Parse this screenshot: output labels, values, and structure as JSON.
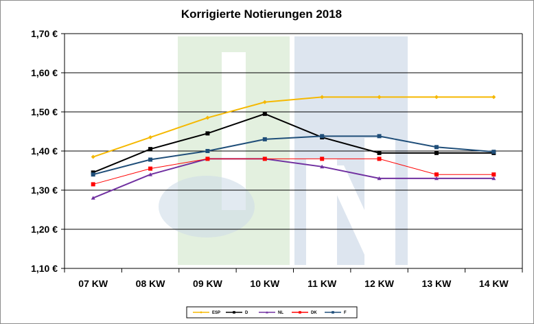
{
  "chart_data": {
    "type": "line",
    "title": "Korrigierte Notierungen 2018",
    "xlabel": "",
    "ylabel": "",
    "categories": [
      "07 KW",
      "08 KW",
      "09 KW",
      "10 KW",
      "11 KW",
      "12 KW",
      "13 KW",
      "14 KW"
    ],
    "ylim": [
      1.1,
      1.7
    ],
    "yticks": [
      "1,10 €",
      "1,20 €",
      "1,30 €",
      "1,40 €",
      "1,50 €",
      "1,60 €",
      "1,70 €"
    ],
    "grid": true,
    "legend_position": "bottom",
    "series": [
      {
        "name": "ESP",
        "color": "#F5B800",
        "marker": "diamond",
        "values": [
          1.385,
          1.435,
          1.485,
          1.525,
          1.538,
          1.538,
          1.538,
          1.538
        ]
      },
      {
        "name": "D",
        "color": "#000000",
        "marker": "square",
        "values": [
          1.345,
          1.405,
          1.445,
          1.495,
          1.435,
          1.395,
          1.395,
          1.395
        ]
      },
      {
        "name": "NL",
        "color": "#7030A0",
        "marker": "triangle",
        "values": [
          1.28,
          1.34,
          1.38,
          1.38,
          1.36,
          1.33,
          1.33,
          1.33
        ]
      },
      {
        "name": "DK",
        "color": "#FF0000",
        "marker": "square",
        "values": [
          1.315,
          1.355,
          1.38,
          1.38,
          1.38,
          1.38,
          1.34,
          1.34
        ]
      },
      {
        "name": "F",
        "color": "#1F4E79",
        "marker": "square",
        "values": [
          1.34,
          1.378,
          1.4,
          1.43,
          1.438,
          1.438,
          1.41,
          1.398
        ]
      }
    ]
  }
}
